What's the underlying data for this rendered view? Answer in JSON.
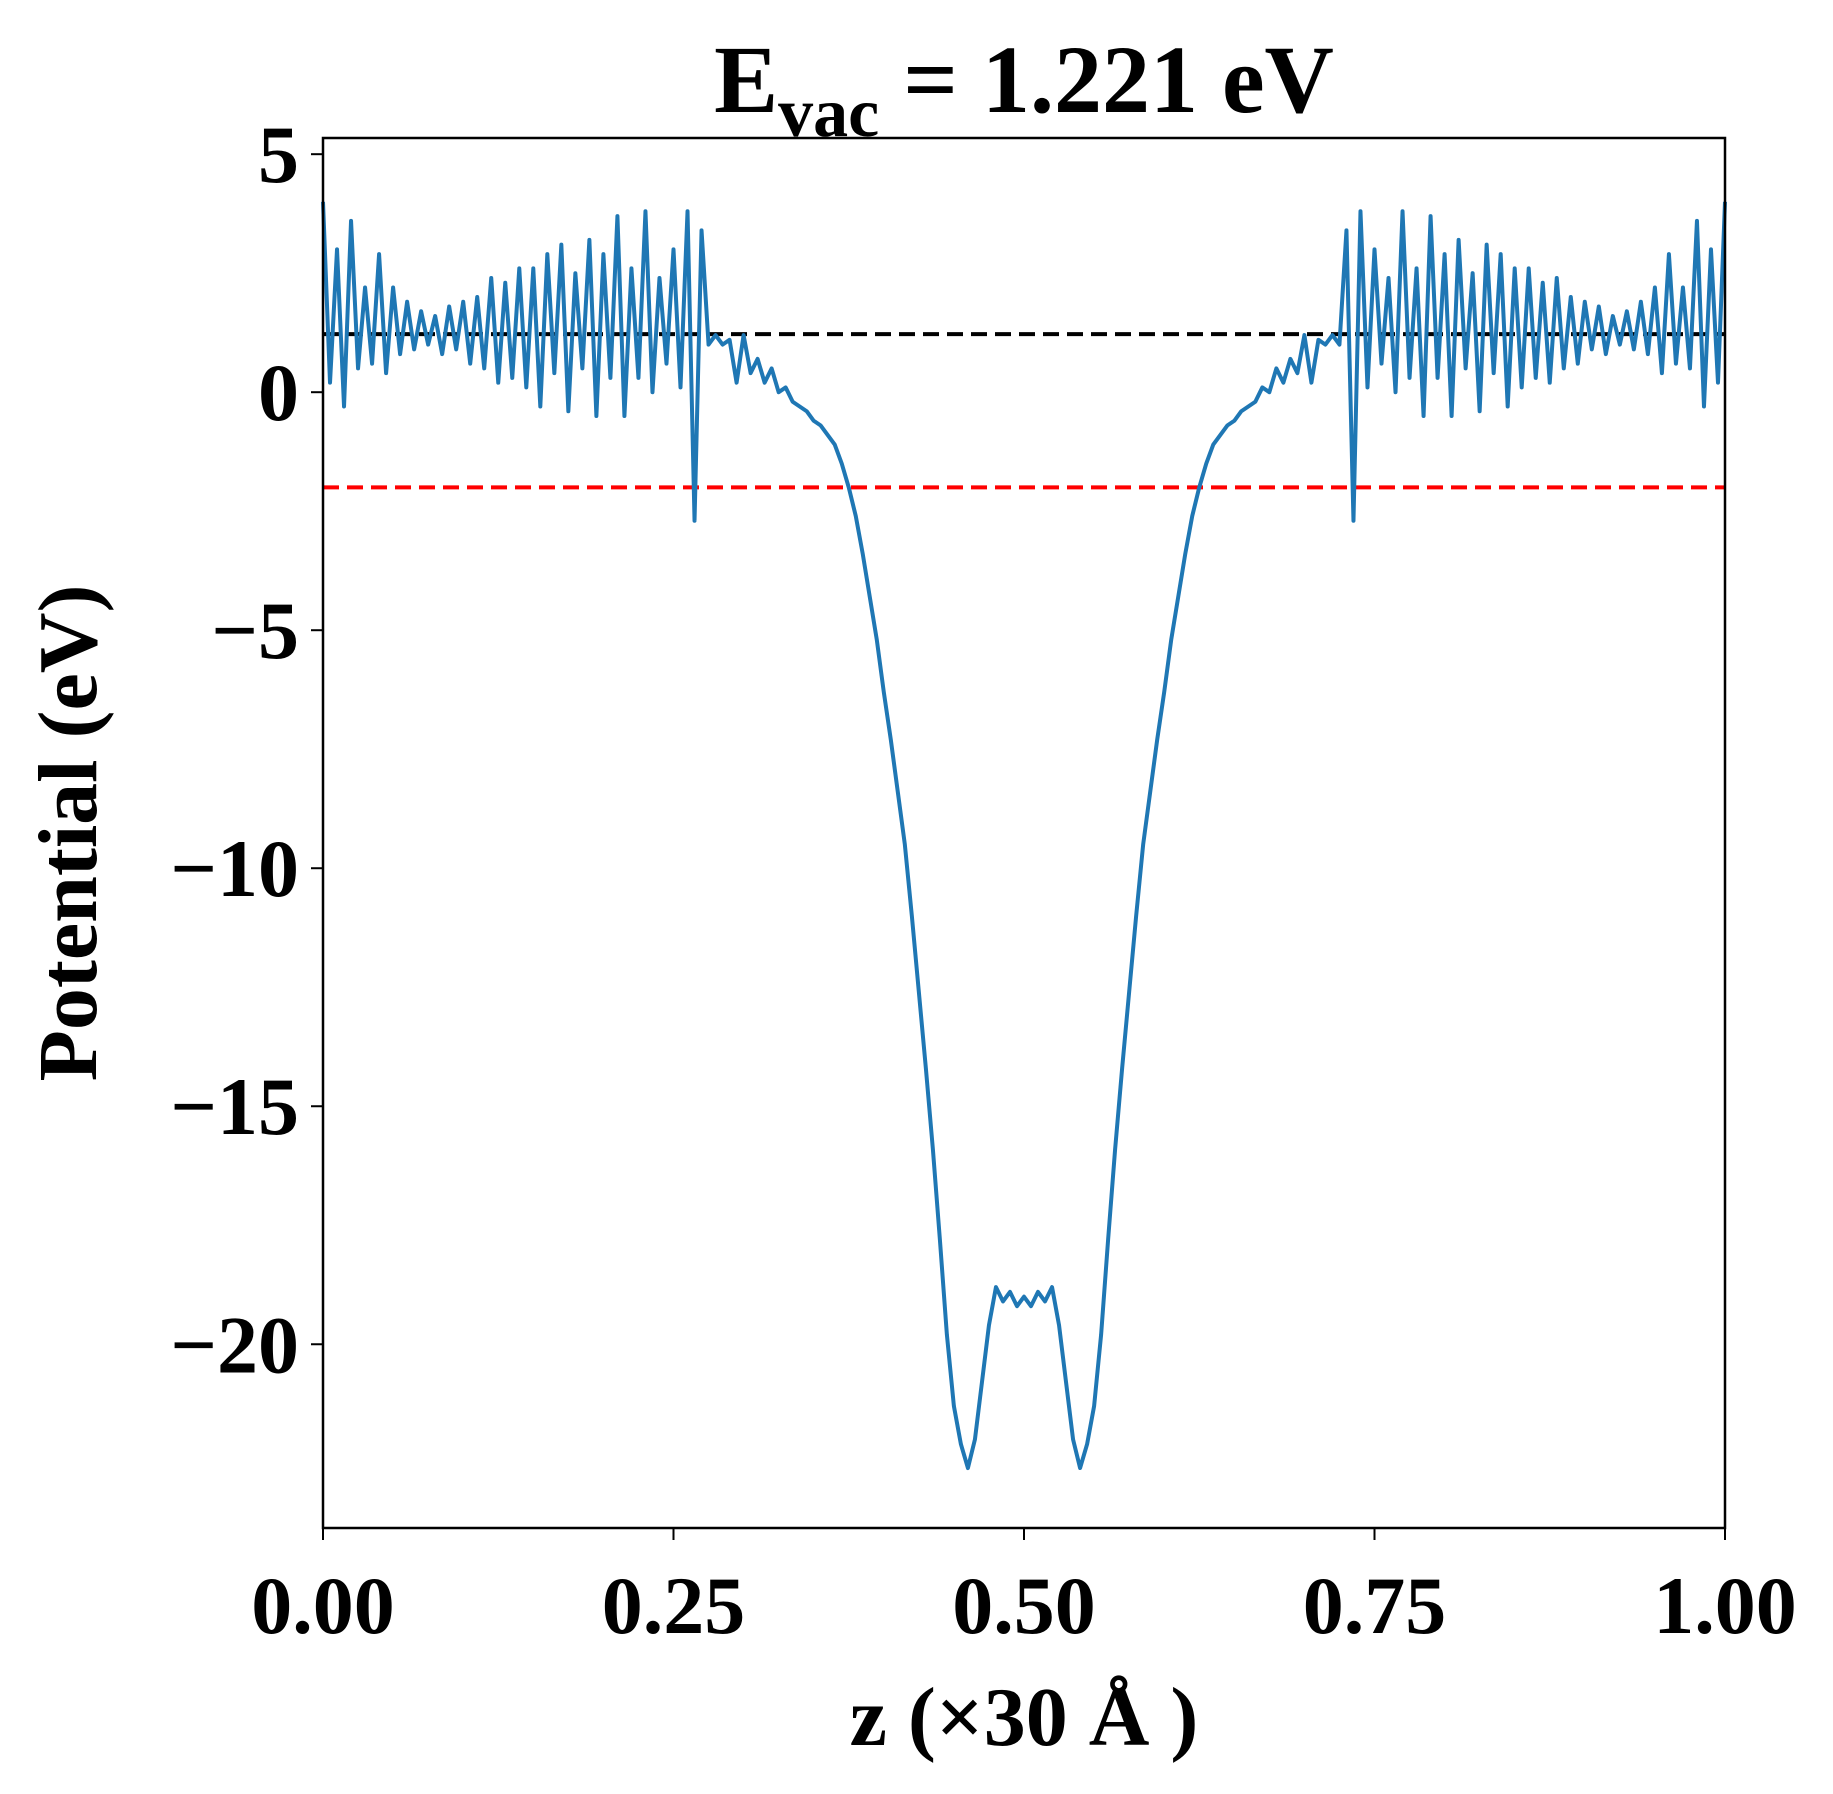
{
  "chart_data": {
    "type": "line",
    "title": {
      "main": "E",
      "subscript": "vac",
      "rest": " = 1.221 eV"
    },
    "xlabel": "z (×30 Å )",
    "ylabel": "Potential (eV)",
    "xlim": [
      0,
      1
    ],
    "ylim": [
      -23.86,
      5.34
    ],
    "xticks": [
      {
        "value": 0,
        "label": "0.00"
      },
      {
        "value": 0.25,
        "label": "0.25"
      },
      {
        "value": 0.5,
        "label": "0.50"
      },
      {
        "value": 0.75,
        "label": "0.75"
      },
      {
        "value": 1,
        "label": "1.00"
      }
    ],
    "yticks": [
      {
        "value": -20,
        "label": "−20"
      },
      {
        "value": -15,
        "label": "−15"
      },
      {
        "value": -10,
        "label": "−10"
      },
      {
        "value": -5,
        "label": "−5"
      },
      0,
      5
    ],
    "grid": false,
    "hlines": [
      {
        "value": 1.221,
        "color": "#000000"
      },
      {
        "value": -2.0,
        "color": "#ff0000"
      }
    ],
    "x": [
      0,
      0.005,
      0.01,
      0.015,
      0.02,
      0.025,
      0.03,
      0.035,
      0.04,
      0.045,
      0.05,
      0.055,
      0.06,
      0.065,
      0.07,
      0.075,
      0.08,
      0.085,
      0.09,
      0.095,
      0.1,
      0.105,
      0.11,
      0.115,
      0.12,
      0.125,
      0.13,
      0.135,
      0.14,
      0.145,
      0.15,
      0.155,
      0.16,
      0.165,
      0.17,
      0.175,
      0.18,
      0.185,
      0.19,
      0.195,
      0.2,
      0.205,
      0.21,
      0.215,
      0.22,
      0.225,
      0.23,
      0.235,
      0.24,
      0.245,
      0.25,
      0.255,
      0.26,
      0.265,
      0.27,
      0.275,
      0.28,
      0.285,
      0.29,
      0.295,
      0.3,
      0.305,
      0.31,
      0.315,
      0.32,
      0.325,
      0.33,
      0.335,
      0.34,
      0.345,
      0.35,
      0.355,
      0.36,
      0.365,
      0.37,
      0.375,
      0.38,
      0.385,
      0.39,
      0.395,
      0.4,
      0.405,
      0.41,
      0.415,
      0.42,
      0.425,
      0.43,
      0.435,
      0.44,
      0.445,
      0.45,
      0.455,
      0.46,
      0.465,
      0.47,
      0.475,
      0.48,
      0.485,
      0.49,
      0.495,
      0.5,
      0.505,
      0.51,
      0.515,
      0.52,
      0.525,
      0.53,
      0.535,
      0.54,
      0.545,
      0.55,
      0.555,
      0.56,
      0.565,
      0.57,
      0.575,
      0.58,
      0.585,
      0.59,
      0.595,
      0.6,
      0.605,
      0.61,
      0.615,
      0.62,
      0.625,
      0.63,
      0.635,
      0.64,
      0.645,
      0.65,
      0.655,
      0.66,
      0.665,
      0.67,
      0.675,
      0.68,
      0.685,
      0.69,
      0.695,
      0.7,
      0.705,
      0.71,
      0.715,
      0.72,
      0.725,
      0.73,
      0.735,
      0.74,
      0.745,
      0.75,
      0.755,
      0.76,
      0.765,
      0.77,
      0.775,
      0.78,
      0.785,
      0.79,
      0.795,
      0.8,
      0.805,
      0.81,
      0.815,
      0.82,
      0.825,
      0.83,
      0.835,
      0.84,
      0.845,
      0.85,
      0.855,
      0.86,
      0.865,
      0.87,
      0.875,
      0.88,
      0.885,
      0.89,
      0.895,
      0.9,
      0.905,
      0.91,
      0.915,
      0.92,
      0.925,
      0.93,
      0.935,
      0.94,
      0.945,
      0.95,
      0.955,
      0.96,
      0.965,
      0.97,
      0.975,
      0.98,
      0.985,
      0.99,
      0.995,
      1
    ],
    "series": [
      {
        "color": "#1f77b4",
        "values": [
          4.0,
          0.2,
          3.0,
          -0.3,
          3.6,
          0.5,
          2.2,
          0.6,
          2.9,
          0.4,
          2.2,
          0.8,
          1.9,
          0.9,
          1.7,
          1.0,
          1.6,
          0.8,
          1.8,
          0.9,
          1.9,
          0.6,
          2.0,
          0.5,
          2.4,
          0.2,
          2.3,
          0.3,
          2.6,
          0.1,
          2.6,
          -0.3,
          2.9,
          0.4,
          3.1,
          -0.4,
          2.5,
          0.5,
          3.2,
          -0.5,
          2.9,
          0.3,
          3.7,
          -0.5,
          2.6,
          0.3,
          3.8,
          0.0,
          2.4,
          0.6,
          3.0,
          0.1,
          3.8,
          -2.7,
          3.4,
          1.0,
          1.2,
          1.0,
          1.1,
          0.2,
          1.2,
          0.4,
          0.7,
          0.2,
          0.5,
          0.0,
          0.1,
          -0.2,
          -0.3,
          -0.4,
          -0.6,
          -0.7,
          -0.9,
          -1.1,
          -1.5,
          -2.0,
          -2.6,
          -3.4,
          -4.3,
          -5.2,
          -6.3,
          -7.3,
          -8.4,
          -9.5,
          -11.0,
          -12.6,
          -14.2,
          -15.9,
          -17.8,
          -19.8,
          -21.3,
          -22.1,
          -22.6,
          -22.0,
          -20.8,
          -19.6,
          -18.8,
          -19.1,
          -18.9,
          -19.2,
          -19.0,
          -19.2,
          -18.9,
          -19.1,
          -18.8,
          -19.6,
          -20.8,
          -22.0,
          -22.6,
          -22.1,
          -21.3,
          -19.8,
          -17.8,
          -15.9,
          -14.2,
          -12.6,
          -11.0,
          -9.5,
          -8.4,
          -7.3,
          -6.3,
          -5.2,
          -4.3,
          -3.4,
          -2.6,
          -2.0,
          -1.5,
          -1.1,
          -0.9,
          -0.7,
          -0.6,
          -0.4,
          -0.3,
          -0.2,
          0.1,
          0.0,
          0.5,
          0.2,
          0.7,
          0.4,
          1.2,
          0.2,
          1.1,
          1.0,
          1.2,
          1.0,
          3.4,
          -2.7,
          3.8,
          0.1,
          3.0,
          0.6,
          2.4,
          0.0,
          3.8,
          0.3,
          2.6,
          -0.5,
          3.7,
          0.3,
          2.9,
          -0.5,
          3.2,
          0.5,
          2.5,
          -0.4,
          3.1,
          0.4,
          2.9,
          -0.3,
          2.6,
          0.1,
          2.6,
          0.3,
          2.3,
          0.2,
          2.4,
          0.5,
          2.0,
          0.6,
          1.9,
          0.9,
          1.8,
          0.8,
          1.6,
          1.0,
          1.7,
          0.9,
          1.9,
          0.8,
          2.2,
          0.4,
          2.9,
          0.6,
          2.2,
          0.5,
          3.6,
          -0.3,
          3.0,
          0.2,
          4.0
        ]
      }
    ]
  }
}
